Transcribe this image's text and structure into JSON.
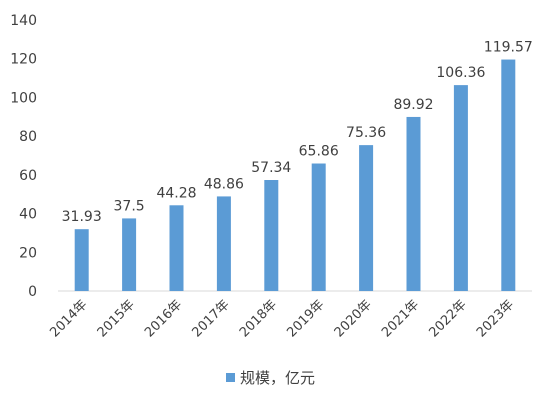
{
  "chart_data": {
    "type": "bar",
    "categories": [
      "2014年",
      "2015年",
      "2016年",
      "2017年",
      "2018年",
      "2019年",
      "2020年",
      "2021年",
      "2022年",
      "2023年"
    ],
    "series": [
      {
        "name": "规模，亿元",
        "values": [
          31.93,
          37.5,
          44.28,
          48.86,
          57.34,
          65.86,
          75.36,
          89.92,
          106.36,
          119.57
        ],
        "value_labels": [
          "31.93",
          "37.5",
          "44.28",
          "48.86",
          "57.34",
          "65.86",
          "75.36",
          "89.92",
          "106.36",
          "119.57"
        ]
      }
    ],
    "ylim": [
      0,
      140
    ],
    "yticks": [
      0,
      20,
      40,
      60,
      80,
      100,
      120,
      140
    ],
    "title": "",
    "xlabel": "",
    "ylabel": "",
    "grid": false,
    "legend": {
      "placement": "bottom"
    },
    "bar_color": "#5b9bd5"
  }
}
